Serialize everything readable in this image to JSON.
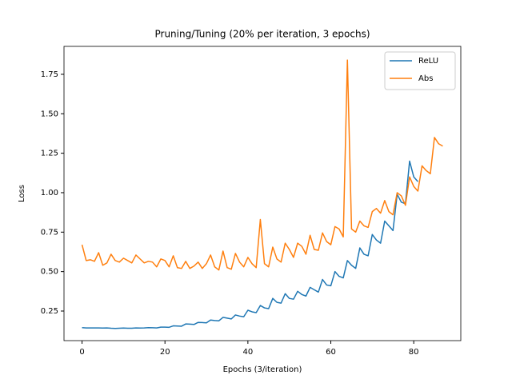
{
  "chart_data": {
    "type": "line",
    "title": "Pruning/Tuning (20% per iteration, 3 epochs)",
    "xlabel": "Epochs (3/iteration)",
    "ylabel": "Loss",
    "x": [
      0,
      1,
      2,
      3,
      4,
      5,
      6,
      7,
      8,
      9,
      10,
      11,
      12,
      13,
      14,
      15,
      16,
      17,
      18,
      19,
      20,
      21,
      22,
      23,
      24,
      25,
      26,
      27,
      28,
      29,
      30,
      31,
      32,
      33,
      34,
      35,
      36,
      37,
      38,
      39,
      40,
      41,
      42,
      43,
      44,
      45,
      46,
      47,
      48,
      49,
      50,
      51,
      52,
      53,
      54,
      55,
      56,
      57,
      58,
      59,
      60,
      61,
      62,
      63,
      64,
      65,
      66,
      67,
      68,
      69,
      70,
      71,
      72,
      73,
      74,
      75,
      76,
      77,
      78,
      79,
      80,
      81,
      82,
      83,
      84,
      85,
      86,
      87
    ],
    "series": [
      {
        "name": "ReLU",
        "color": "#1f77b4",
        "values": [
          0.145,
          0.143,
          0.143,
          0.143,
          0.143,
          0.142,
          0.143,
          0.141,
          0.14,
          0.141,
          0.142,
          0.141,
          0.141,
          0.143,
          0.142,
          0.143,
          0.145,
          0.144,
          0.143,
          0.148,
          0.148,
          0.147,
          0.156,
          0.155,
          0.154,
          0.168,
          0.167,
          0.165,
          0.178,
          0.177,
          0.175,
          0.193,
          0.19,
          0.188,
          0.21,
          0.205,
          0.2,
          0.225,
          0.218,
          0.214,
          0.255,
          0.245,
          0.24,
          0.285,
          0.27,
          0.265,
          0.33,
          0.305,
          0.3,
          0.36,
          0.33,
          0.325,
          0.375,
          0.355,
          0.345,
          0.4,
          0.385,
          0.37,
          0.45,
          0.415,
          0.41,
          0.5,
          0.47,
          0.46,
          0.57,
          0.54,
          0.52,
          0.65,
          0.61,
          0.6,
          0.735,
          0.7,
          0.68,
          0.82,
          0.79,
          0.76,
          0.99,
          0.94,
          0.93,
          1.2,
          1.1,
          1.07,
          null,
          null,
          null,
          null,
          null,
          null
        ]
      },
      {
        "name": "Abs",
        "color": "#ff7f0e",
        "values": [
          0.67,
          0.57,
          0.575,
          0.565,
          0.62,
          0.54,
          0.555,
          0.61,
          0.57,
          0.56,
          0.585,
          0.57,
          0.555,
          0.605,
          0.58,
          0.555,
          0.565,
          0.56,
          0.53,
          0.58,
          0.57,
          0.53,
          0.6,
          0.525,
          0.52,
          0.565,
          0.52,
          0.535,
          0.56,
          0.52,
          0.55,
          0.605,
          0.53,
          0.51,
          0.63,
          0.525,
          0.515,
          0.615,
          0.56,
          0.53,
          0.59,
          0.55,
          0.525,
          0.83,
          0.55,
          0.53,
          0.655,
          0.58,
          0.56,
          0.68,
          0.64,
          0.59,
          0.68,
          0.66,
          0.61,
          0.73,
          0.64,
          0.635,
          0.745,
          0.69,
          0.67,
          0.785,
          0.77,
          0.72,
          1.84,
          0.77,
          0.75,
          0.82,
          0.79,
          0.78,
          0.88,
          0.9,
          0.87,
          0.95,
          0.88,
          0.86,
          1.0,
          0.98,
          0.92,
          1.1,
          1.04,
          1.01,
          1.17,
          1.14,
          1.12,
          1.35,
          1.31,
          1.295
        ]
      }
    ],
    "xlim": [
      -4.35,
      91.35
    ],
    "xticks": [
      0,
      20,
      40,
      60,
      80
    ],
    "ylim": [
      0.0625,
      1.927
    ],
    "yticks": [
      0.25,
      {
        "value": 0.5,
        "label": "0.50"
      },
      0.75,
      {
        "value": 1.0,
        "label": "1.00"
      },
      1.25,
      {
        "value": 1.5,
        "label": "1.50"
      },
      1.75
    ],
    "legend": "upper right"
  }
}
